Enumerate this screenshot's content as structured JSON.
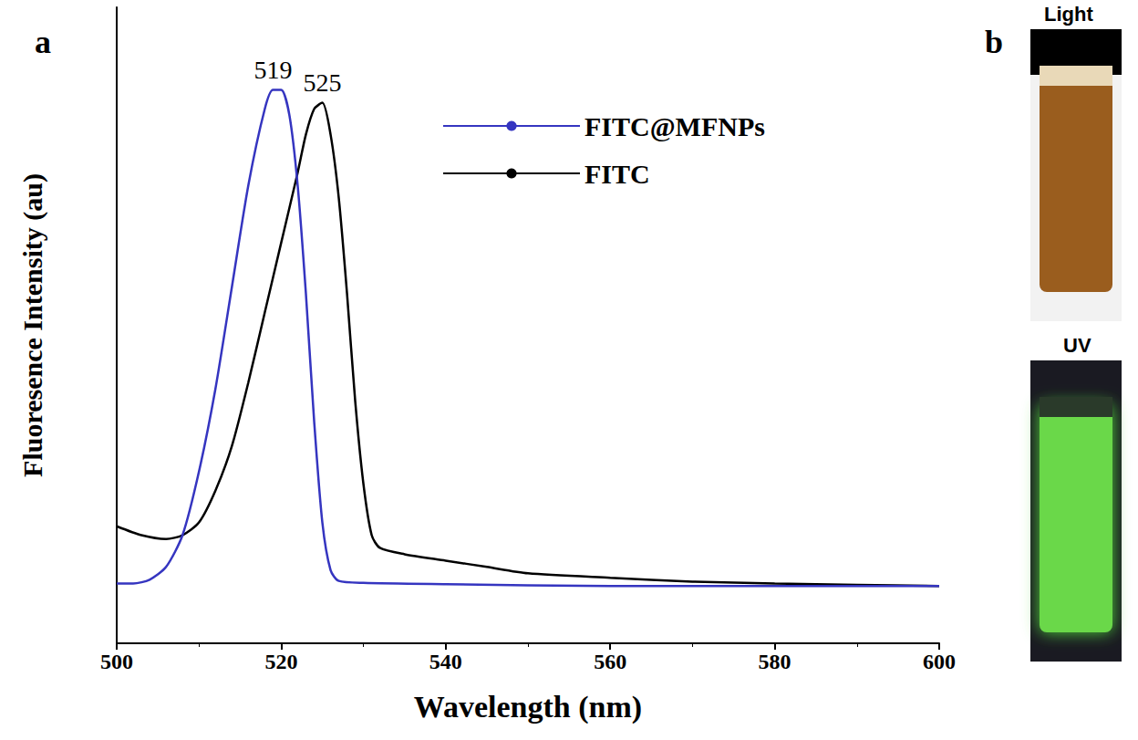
{
  "chart_data": {
    "type": "line",
    "panel_label": "a",
    "x_label": "Wavelength (nm)",
    "y_label": "Fluoresence Intensity (au)",
    "xlim": [
      500,
      600
    ],
    "xticks": [
      500,
      520,
      540,
      560,
      580,
      600
    ],
    "ylim": [
      0,
      100
    ],
    "yticks": [],
    "tick_labels": "x",
    "grid": false,
    "legend": "upper right",
    "series": [
      {
        "name": "FITC@MFNPs",
        "color": "#3535c0",
        "x": [
          500,
          502,
          504,
          506,
          508,
          510,
          512,
          514,
          516,
          518,
          519,
          520,
          521,
          522,
          523,
          524,
          525,
          526,
          527,
          530,
          540,
          560,
          580,
          600
        ],
        "values": [
          9.4,
          9.4,
          10,
          12,
          17,
          27,
          40,
          56,
          72,
          84,
          87,
          87,
          83,
          72,
          55,
          35,
          19,
          11.5,
          9.8,
          9.5,
          9.3,
          9.0,
          9.0,
          9.0
        ]
      },
      {
        "name": "FITC",
        "color": "#000000",
        "x": [
          500,
          503,
          506,
          508,
          510,
          512,
          514,
          516,
          518,
          520,
          522,
          523,
          524,
          525,
          526,
          527,
          528,
          529,
          530,
          531,
          532,
          535,
          540,
          545,
          550,
          560,
          570,
          580,
          590,
          600
        ],
        "values": [
          18.4,
          17,
          16.4,
          17,
          19,
          24,
          31,
          41,
          52,
          63,
          74,
          80,
          84,
          85,
          80,
          70,
          55,
          38,
          25,
          17,
          15,
          14,
          13,
          12,
          11,
          10.3,
          9.7,
          9.4,
          9.2,
          9.0
        ]
      }
    ],
    "annotations": [
      {
        "text": "519",
        "x": 519,
        "y": 87
      },
      {
        "text": "525",
        "x": 525,
        "y": 85
      }
    ]
  },
  "panel_b": {
    "panel_label": "b",
    "images": [
      {
        "caption": "Light"
      },
      {
        "caption": "UV"
      }
    ]
  }
}
